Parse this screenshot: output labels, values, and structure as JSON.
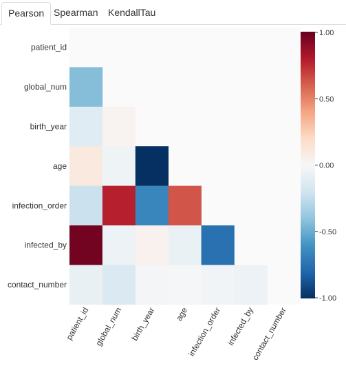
{
  "tabs": [
    {
      "label": "Pearson",
      "active": true
    },
    {
      "label": "Spearman",
      "active": false
    },
    {
      "label": "KendallTau",
      "active": false
    }
  ],
  "chart_data": {
    "type": "heatmap",
    "variables": [
      "patient_id",
      "global_num",
      "birth_year",
      "age",
      "infection_order",
      "infected_by",
      "contact_number"
    ],
    "mask": "upper-triangle-and-diagonal",
    "matrix": [
      [
        null,
        null,
        null,
        null,
        null,
        null,
        null
      ],
      [
        -0.43,
        null,
        null,
        null,
        null,
        null,
        null
      ],
      [
        -0.12,
        0.03,
        null,
        null,
        null,
        null,
        null
      ],
      [
        0.1,
        -0.05,
        -1.0,
        null,
        null,
        null,
        null
      ],
      [
        -0.22,
        0.78,
        -0.66,
        0.63,
        null,
        null,
        null
      ],
      [
        0.97,
        -0.06,
        0.04,
        -0.07,
        -0.75,
        null,
        null
      ],
      [
        -0.08,
        -0.15,
        -0.02,
        -0.01,
        -0.03,
        -0.06,
        null
      ]
    ],
    "colorbar": {
      "min": -1.0,
      "max": 1.0,
      "ticks": [
        "1.00",
        "0.50",
        "0.00",
        "-0.50",
        "-1.00"
      ],
      "colormap": "RdBu_r",
      "stops": [
        "#053061",
        "#2166ac",
        "#4393c3",
        "#92c5de",
        "#d1e5f0",
        "#f7f7f7",
        "#fddbc7",
        "#f4a582",
        "#d6604d",
        "#b2182b",
        "#67001f"
      ]
    },
    "plot_background": "#fafafa"
  }
}
